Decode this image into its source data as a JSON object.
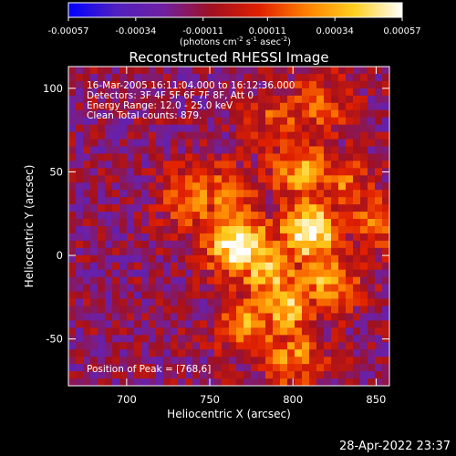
{
  "chart_data": {
    "type": "heatmap",
    "title": "Reconstructed RHESSI Image",
    "xlabel": "Heliocentric X (arcsec)",
    "ylabel": "Heliocentric Y (arcsec)",
    "xlim": [
      665,
      858
    ],
    "ylim": [
      -78,
      113
    ],
    "x_ticks": [
      {
        "value": 700,
        "label": "700"
      },
      {
        "value": 750,
        "label": "750"
      },
      {
        "value": 800,
        "label": "800"
      },
      {
        "value": 850,
        "label": "850"
      }
    ],
    "y_ticks": [
      {
        "value": 100,
        "label": "100"
      },
      {
        "value": 50,
        "label": "50"
      },
      {
        "value": 0,
        "label": "0"
      },
      {
        "value": -50,
        "label": "-50"
      }
    ],
    "annotations": [
      "16-Mar-2005 16:11:04.000 to 16:12:36.000",
      "Detectors: 3F 4F 5F 6F 7F 8F, Att 0",
      "Energy Range: 12.0 - 25.0 keV",
      "Clean     Total counts: 879."
    ],
    "peak_label": "Position of Peak = [768,6]",
    "peak": {
      "x": 768,
      "y": 6
    },
    "colorbar": {
      "min": -0.00057,
      "max": 0.00057,
      "ticks": [
        {
          "value": -0.00057,
          "label": "-0.00057"
        },
        {
          "value": -0.00034,
          "label": "-0.00034"
        },
        {
          "value": -0.00011,
          "label": "-0.00011"
        },
        {
          "value": 0.00011,
          "label": "0.00011"
        },
        {
          "value": 0.00034,
          "label": "0.00034"
        },
        {
          "value": 0.00057,
          "label": "0.00057"
        }
      ],
      "unit_base": "(photons cm",
      "unit_exp1": "-2",
      "unit_mid1": " s",
      "unit_exp2": "-1",
      "unit_mid2": " asec",
      "unit_exp3": "-2",
      "unit_end": ")",
      "colors": [
        "#0000ff",
        "#5020c0",
        "#7020a0",
        "#a01020",
        "#e02000",
        "#ff8000",
        "#ffd020",
        "#ffffff"
      ]
    },
    "sources": [
      {
        "x": 768,
        "y": 6,
        "value": 0.00057
      },
      {
        "x": 810,
        "y": 14,
        "value": 0.00055
      },
      {
        "x": 785,
        "y": -8,
        "value": 0.00042
      },
      {
        "x": 795,
        "y": -30,
        "value": 0.00038
      },
      {
        "x": 775,
        "y": -40,
        "value": 0.0003
      },
      {
        "x": 820,
        "y": -15,
        "value": 0.00032
      },
      {
        "x": 805,
        "y": 50,
        "value": 0.0003
      },
      {
        "x": 740,
        "y": 35,
        "value": 0.00025
      },
      {
        "x": 760,
        "y": 35,
        "value": 0.00022
      },
      {
        "x": 830,
        "y": 40,
        "value": 0.0002
      },
      {
        "x": 815,
        "y": 90,
        "value": 0.00015
      },
      {
        "x": 850,
        "y": 20,
        "value": 0.00018
      },
      {
        "x": 800,
        "y": -60,
        "value": 0.00025
      },
      {
        "x": 790,
        "y": 80,
        "value": 0.00012
      }
    ],
    "background_level": -0.00015
  },
  "footer": {
    "timestamp": "28-Apr-2022 23:37"
  }
}
